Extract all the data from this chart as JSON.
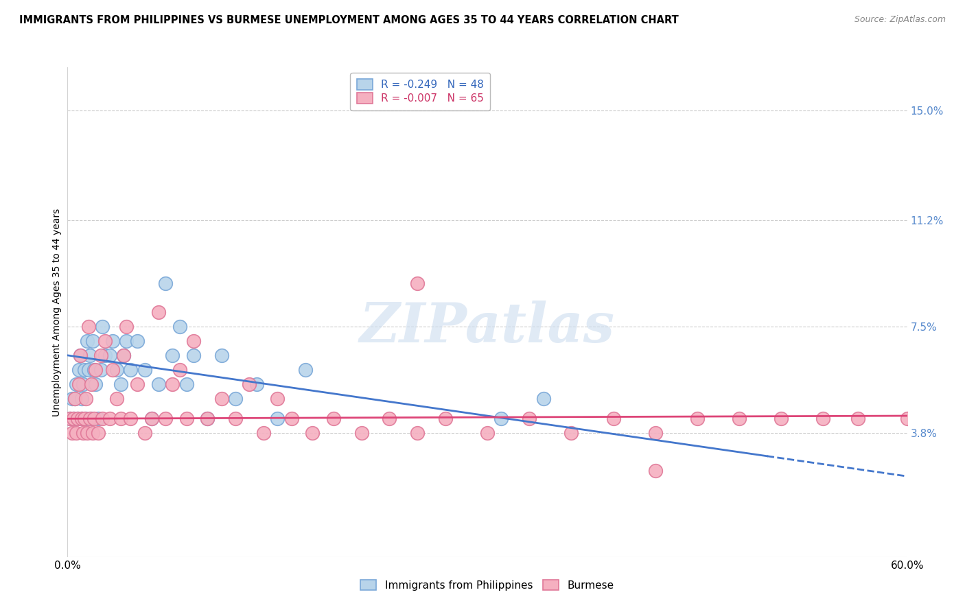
{
  "title": "IMMIGRANTS FROM PHILIPPINES VS BURMESE UNEMPLOYMENT AMONG AGES 35 TO 44 YEARS CORRELATION CHART",
  "source": "Source: ZipAtlas.com",
  "ylabel": "Unemployment Among Ages 35 to 44 years",
  "xlim": [
    0.0,
    0.6
  ],
  "ylim": [
    -0.005,
    0.165
  ],
  "right_yticks": [
    0.0,
    0.038,
    0.075,
    0.112,
    0.15
  ],
  "right_yticklabels": [
    "",
    "3.8%",
    "7.5%",
    "11.2%",
    "15.0%"
  ],
  "watermark": "ZIPatlas",
  "blue_color": "#b8d4ea",
  "pink_color": "#f5b0c0",
  "blue_edge": "#7aa8d8",
  "pink_edge": "#e07898",
  "trend_blue_color": "#4477cc",
  "trend_pink_color": "#dd4477",
  "grid_color": "#cccccc",
  "blue_trend_x0": 0.0,
  "blue_trend_y0": 0.065,
  "blue_trend_x1": 0.6,
  "blue_trend_y1": 0.023,
  "blue_trend_solid_end": 0.5,
  "pink_trend_x0": 0.0,
  "pink_trend_y0": 0.043,
  "pink_trend_x1": 0.6,
  "pink_trend_y1": 0.044,
  "blue_points_x": [
    0.002,
    0.003,
    0.004,
    0.005,
    0.006,
    0.007,
    0.008,
    0.009,
    0.01,
    0.01,
    0.011,
    0.012,
    0.013,
    0.014,
    0.015,
    0.016,
    0.017,
    0.018,
    0.019,
    0.02,
    0.022,
    0.024,
    0.025,
    0.027,
    0.03,
    0.032,
    0.035,
    0.038,
    0.04,
    0.042,
    0.045,
    0.05,
    0.055,
    0.06,
    0.065,
    0.07,
    0.075,
    0.08,
    0.085,
    0.09,
    0.1,
    0.11,
    0.12,
    0.135,
    0.15,
    0.17,
    0.31,
    0.34
  ],
  "blue_points_y": [
    0.043,
    0.05,
    0.043,
    0.05,
    0.055,
    0.043,
    0.06,
    0.065,
    0.043,
    0.05,
    0.055,
    0.06,
    0.043,
    0.07,
    0.06,
    0.065,
    0.043,
    0.07,
    0.06,
    0.055,
    0.043,
    0.06,
    0.075,
    0.065,
    0.065,
    0.07,
    0.06,
    0.055,
    0.065,
    0.07,
    0.06,
    0.07,
    0.06,
    0.043,
    0.055,
    0.09,
    0.065,
    0.075,
    0.055,
    0.065,
    0.043,
    0.065,
    0.05,
    0.055,
    0.043,
    0.06,
    0.043,
    0.05
  ],
  "pink_points_x": [
    0.002,
    0.003,
    0.004,
    0.005,
    0.006,
    0.007,
    0.008,
    0.009,
    0.01,
    0.011,
    0.012,
    0.013,
    0.014,
    0.015,
    0.016,
    0.017,
    0.018,
    0.019,
    0.02,
    0.022,
    0.024,
    0.025,
    0.027,
    0.03,
    0.032,
    0.035,
    0.038,
    0.04,
    0.042,
    0.045,
    0.05,
    0.055,
    0.06,
    0.065,
    0.07,
    0.075,
    0.08,
    0.085,
    0.09,
    0.1,
    0.11,
    0.12,
    0.13,
    0.14,
    0.15,
    0.16,
    0.175,
    0.19,
    0.21,
    0.23,
    0.25,
    0.27,
    0.3,
    0.33,
    0.36,
    0.39,
    0.42,
    0.45,
    0.48,
    0.51,
    0.54,
    0.565,
    0.6,
    0.25,
    0.42
  ],
  "pink_points_y": [
    0.043,
    0.038,
    0.043,
    0.05,
    0.038,
    0.043,
    0.055,
    0.065,
    0.043,
    0.038,
    0.043,
    0.05,
    0.038,
    0.075,
    0.043,
    0.055,
    0.038,
    0.043,
    0.06,
    0.038,
    0.065,
    0.043,
    0.07,
    0.043,
    0.06,
    0.05,
    0.043,
    0.065,
    0.075,
    0.043,
    0.055,
    0.038,
    0.043,
    0.08,
    0.043,
    0.055,
    0.06,
    0.043,
    0.07,
    0.043,
    0.05,
    0.043,
    0.055,
    0.038,
    0.05,
    0.043,
    0.038,
    0.043,
    0.038,
    0.043,
    0.038,
    0.043,
    0.038,
    0.043,
    0.038,
    0.043,
    0.038,
    0.043,
    0.043,
    0.043,
    0.043,
    0.043,
    0.043,
    0.09,
    0.025
  ]
}
